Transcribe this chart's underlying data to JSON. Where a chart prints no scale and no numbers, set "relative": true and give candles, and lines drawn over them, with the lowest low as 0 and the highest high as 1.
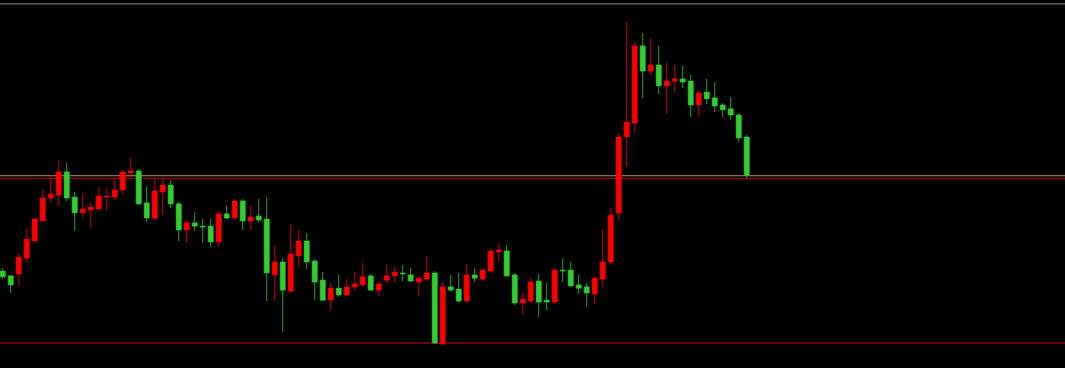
{
  "chart_data": {
    "type": "candlestick",
    "relative": true,
    "categories": [
      null,
      null,
      null,
      null,
      null,
      null,
      null,
      null,
      null,
      null,
      null,
      null,
      null,
      null,
      null,
      null,
      null,
      null,
      null,
      null,
      null,
      null,
      null,
      null,
      null,
      null,
      null,
      null,
      null,
      null,
      null,
      null,
      null,
      null,
      null,
      null,
      null,
      null,
      null,
      null,
      null,
      null,
      null,
      null,
      null,
      null,
      null,
      null,
      null,
      null,
      null,
      null,
      null,
      null,
      null,
      null,
      null,
      null,
      null,
      null,
      null,
      null,
      null,
      null,
      null,
      null,
      null,
      null,
      null,
      null,
      null,
      null,
      null,
      null,
      null,
      null,
      null,
      null,
      null,
      null,
      null,
      null,
      null,
      null,
      null,
      null,
      null,
      null,
      null,
      null,
      null,
      null,
      null,
      null
    ],
    "ohlc": [
      [
        0.229,
        0.238,
        0.204,
        0.211
      ],
      [
        0.214,
        0.217,
        0.161,
        0.186
      ],
      [
        0.22,
        0.285,
        0.183,
        0.272
      ],
      [
        0.269,
        0.362,
        0.254,
        0.328
      ],
      [
        0.322,
        0.393,
        0.319,
        0.39
      ],
      [
        0.384,
        0.483,
        0.384,
        0.455
      ],
      [
        0.455,
        0.52,
        0.443,
        0.467
      ],
      [
        0.464,
        0.573,
        0.43,
        0.536
      ],
      [
        0.536,
        0.563,
        0.446,
        0.455
      ],
      [
        0.458,
        0.474,
        0.353,
        0.409
      ],
      [
        0.409,
        0.471,
        0.396,
        0.421
      ],
      [
        0.418,
        0.44,
        0.362,
        0.427
      ],
      [
        0.421,
        0.489,
        0.418,
        0.461
      ],
      [
        0.458,
        0.486,
        0.415,
        0.461
      ],
      [
        0.458,
        0.514,
        0.449,
        0.48
      ],
      [
        0.48,
        0.542,
        0.467,
        0.536
      ],
      [
        0.533,
        0.579,
        0.52,
        0.539
      ],
      [
        0.539,
        0.545,
        0.433,
        0.437
      ],
      [
        0.44,
        0.492,
        0.381,
        0.393
      ],
      [
        0.393,
        0.517,
        0.387,
        0.477
      ],
      [
        0.474,
        0.517,
        0.402,
        0.495
      ],
      [
        0.495,
        0.511,
        0.424,
        0.437
      ],
      [
        0.437,
        0.443,
        0.322,
        0.356
      ],
      [
        0.356,
        0.384,
        0.316,
        0.378
      ],
      [
        0.378,
        0.412,
        0.353,
        0.368
      ],
      [
        0.368,
        0.39,
        0.316,
        0.365
      ],
      [
        0.368,
        0.39,
        0.303,
        0.319
      ],
      [
        0.319,
        0.412,
        0.303,
        0.406
      ],
      [
        0.406,
        0.433,
        0.39,
        0.393
      ],
      [
        0.393,
        0.452,
        0.39,
        0.446
      ],
      [
        0.446,
        0.452,
        0.356,
        0.384
      ],
      [
        0.384,
        0.433,
        0.356,
        0.396
      ],
      [
        0.399,
        0.452,
        0.378,
        0.387
      ],
      [
        0.39,
        0.458,
        0.136,
        0.223
      ],
      [
        0.217,
        0.31,
        0.139,
        0.257
      ],
      [
        0.257,
        0.269,
        0.04,
        0.17
      ],
      [
        0.167,
        0.372,
        0.161,
        0.282
      ],
      [
        0.276,
        0.356,
        0.241,
        0.322
      ],
      [
        0.322,
        0.347,
        0.235,
        0.257
      ],
      [
        0.26,
        0.266,
        0.139,
        0.195
      ],
      [
        0.201,
        0.226,
        0.136,
        0.139
      ],
      [
        0.139,
        0.192,
        0.108,
        0.176
      ],
      [
        0.176,
        0.217,
        0.149,
        0.155
      ],
      [
        0.155,
        0.204,
        0.152,
        0.18
      ],
      [
        0.18,
        0.226,
        0.17,
        0.189
      ],
      [
        0.186,
        0.254,
        0.18,
        0.211
      ],
      [
        0.214,
        0.22,
        0.167,
        0.17
      ],
      [
        0.17,
        0.195,
        0.152,
        0.189
      ],
      [
        0.201,
        0.251,
        0.192,
        0.214
      ],
      [
        0.214,
        0.241,
        0.192,
        0.226
      ],
      [
        0.223,
        0.248,
        0.198,
        0.22
      ],
      [
        0.217,
        0.238,
        0.195,
        0.198
      ],
      [
        0.195,
        0.214,
        0.149,
        0.207
      ],
      [
        0.204,
        0.276,
        0.198,
        0.223
      ],
      [
        0.223,
        0.229,
        0.003,
        0.006
      ],
      [
        0.003,
        0.195,
        0.0,
        0.18
      ],
      [
        0.18,
        0.217,
        0.164,
        0.17
      ],
      [
        0.173,
        0.223,
        0.133,
        0.136
      ],
      [
        0.136,
        0.251,
        0.13,
        0.217
      ],
      [
        0.217,
        0.238,
        0.195,
        0.207
      ],
      [
        0.204,
        0.238,
        0.201,
        0.232
      ],
      [
        0.229,
        0.3,
        0.223,
        0.291
      ],
      [
        0.288,
        0.316,
        0.257,
        0.294
      ],
      [
        0.291,
        0.31,
        0.211,
        0.214
      ],
      [
        0.217,
        0.223,
        0.124,
        0.13
      ],
      [
        0.13,
        0.161,
        0.093,
        0.142
      ],
      [
        0.136,
        0.207,
        0.13,
        0.195
      ],
      [
        0.198,
        0.22,
        0.087,
        0.133
      ],
      [
        0.139,
        0.192,
        0.108,
        0.133
      ],
      [
        0.133,
        0.238,
        0.127,
        0.232
      ],
      [
        0.232,
        0.269,
        0.195,
        0.229
      ],
      [
        0.232,
        0.257,
        0.18,
        0.183
      ],
      [
        0.186,
        0.217,
        0.158,
        0.176
      ],
      [
        0.18,
        0.192,
        0.118,
        0.161
      ],
      [
        0.158,
        0.214,
        0.127,
        0.207
      ],
      [
        0.204,
        0.359,
        0.18,
        0.257
      ],
      [
        0.257,
        0.424,
        0.248,
        0.402
      ],
      [
        0.409,
        0.656,
        0.387,
        0.644
      ],
      [
        0.644,
        1.0,
        0.551,
        0.69
      ],
      [
        0.687,
        0.938,
        0.659,
        0.926
      ],
      [
        0.926,
        0.966,
        0.765,
        0.848
      ],
      [
        0.848,
        0.95,
        0.833,
        0.867
      ],
      [
        0.867,
        0.926,
        0.777,
        0.802
      ],
      [
        0.802,
        0.873,
        0.715,
        0.817
      ],
      [
        0.817,
        0.867,
        0.783,
        0.824
      ],
      [
        0.824,
        0.864,
        0.796,
        0.814
      ],
      [
        0.817,
        0.836,
        0.706,
        0.743
      ],
      [
        0.743,
        0.786,
        0.706,
        0.78
      ],
      [
        0.783,
        0.824,
        0.746,
        0.762
      ],
      [
        0.765,
        0.814,
        0.721,
        0.74
      ],
      [
        0.743,
        0.749,
        0.706,
        0.728
      ],
      [
        0.731,
        0.768,
        0.697,
        0.712
      ],
      [
        0.712,
        0.718,
        0.628,
        0.641
      ],
      [
        0.644,
        0.65,
        0.517,
        0.526
      ]
    ],
    "colors": [
      "#32cd32",
      "#32cd32",
      "#ff0000",
      "#ff0000",
      "#ff0000",
      "#ff0000",
      "#ff0000",
      "#ff0000",
      "#32cd32",
      "#32cd32",
      "#ff0000",
      "#ff0000",
      "#ff0000",
      "#ff0000",
      "#ff0000",
      "#ff0000",
      "#ff0000",
      "#32cd32",
      "#32cd32",
      "#ff0000",
      "#ff0000",
      "#32cd32",
      "#32cd32",
      "#ff0000",
      "#32cd32",
      "#32cd32",
      "#32cd32",
      "#ff0000",
      "#32cd32",
      "#ff0000",
      "#32cd32",
      "#ff0000",
      "#32cd32",
      "#32cd32",
      "#ff0000",
      "#32cd32",
      "#ff0000",
      "#ff0000",
      "#32cd32",
      "#32cd32",
      "#32cd32",
      "#ff0000",
      "#32cd32",
      "#ff0000",
      "#ff0000",
      "#ff0000",
      "#32cd32",
      "#ff0000",
      "#ff0000",
      "#ff0000",
      "#32cd32",
      "#32cd32",
      "#ff0000",
      "#ff0000",
      "#32cd32",
      "#ff0000",
      "#32cd32",
      "#32cd32",
      "#ff0000",
      "#32cd32",
      "#ff0000",
      "#ff0000",
      "#ff0000",
      "#32cd32",
      "#32cd32",
      "#ff0000",
      "#ff0000",
      "#32cd32",
      "#32cd32",
      "#ff0000",
      "#32cd32",
      "#32cd32",
      "#32cd32",
      "#32cd32",
      "#ff0000",
      "#ff0000",
      "#ff0000",
      "#ff0000",
      "#ff0000",
      "#ff0000",
      "#32cd32",
      "#ff0000",
      "#32cd32",
      "#ff0000",
      "#ff0000",
      "#32cd32",
      "#32cd32",
      "#ff0000",
      "#32cd32",
      "#32cd32",
      "#32cd32",
      "#32cd32",
      "#32cd32",
      "#32cd32"
    ],
    "ref_lines": [
      {
        "axis": "y",
        "value": 1.056,
        "color": "#b4a08c"
      },
      {
        "axis": "y",
        "value": 0.524,
        "color": "#c8a078"
      },
      {
        "axis": "y",
        "value": 0.516,
        "color": "#e00000"
      },
      {
        "axis": "y",
        "value": 0.006,
        "color": "#e00000"
      }
    ]
  }
}
